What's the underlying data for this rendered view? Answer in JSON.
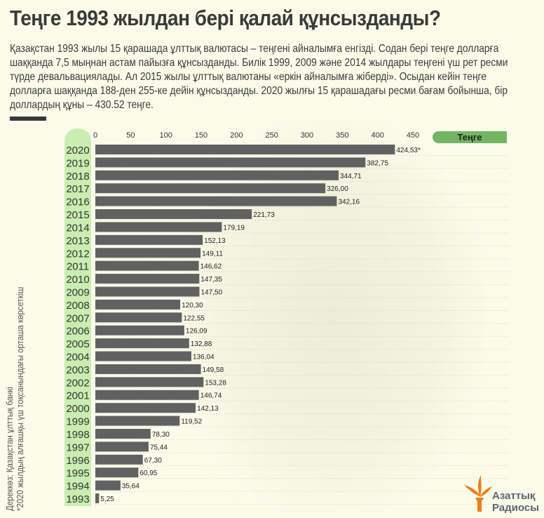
{
  "title": "Теңге 1993 жылдан бері қалай құнсызданды?",
  "intro": "Қазақстан 1993 жылы 15 қарашада ұлттық валютасы – теңгені айналымға енгізді. Содан бері теңге долларға шаққанда 7,5 мыңнан астам пайызға құнсызданды. Билік 1999, 2009 және 2014 жылдары теңгені үш рет ресми түрде девальвациялады. Ал 2015 жылы ұлттық валютаны «еркін айналымға жіберді». Осыдан кейін теңге долларға шаққанда 188-ден 255-ке дейін құнсызданды. 2020 жылғы 15 қарашадағы ресми бағам бойынша, бір доллардың құны – 430.52 теңге.",
  "source": "Дереккөз: Қазақстан ұлттық банкі",
  "footnote": "*2020 жылдың алғашқы үш тоқсанындағы орташа көрсеткіш",
  "logo": {
    "line1": "Азаттық",
    "line2": "Радиосы"
  },
  "colors": {
    "bar": "#616161",
    "year_band": "#c9eeb0",
    "unit_pill": "#72b565",
    "logo": "#f07d1a",
    "background": "#fbfbea"
  },
  "chart_data": {
    "type": "bar",
    "orientation": "horizontal",
    "unit_label": "Теңге",
    "xlim": [
      0,
      450
    ],
    "xticks": [
      0,
      50,
      100,
      150,
      200,
      250,
      300,
      350,
      400,
      450
    ],
    "categories": [
      "2020",
      "2019",
      "2018",
      "2017",
      "2016",
      "2015",
      "2014",
      "2013",
      "2012",
      "2011",
      "2010",
      "2009",
      "2008",
      "2007",
      "2006",
      "2005",
      "2004",
      "2003",
      "2002",
      "2001",
      "2000",
      "1999",
      "1998",
      "1997",
      "1996",
      "1995",
      "1994",
      "1993"
    ],
    "values": [
      424.53,
      382.75,
      344.71,
      326.0,
      342.16,
      221.73,
      179.19,
      152.13,
      149.11,
      146.62,
      147.35,
      147.5,
      120.3,
      122.55,
      126.09,
      132.88,
      136.04,
      149.58,
      153.28,
      146.74,
      142.13,
      119.52,
      78.3,
      75.44,
      67.3,
      60.95,
      35.64,
      5.25
    ],
    "labels": [
      "424,53*",
      "382,75",
      "344,71",
      "326,00",
      "342,16",
      "221,73",
      "179,19",
      "152,13",
      "149,11",
      "146,62",
      "147,35",
      "147,50",
      "120,30",
      "122,55",
      "126,09",
      "132,88",
      "136,04",
      "149,58",
      "153,28",
      "146,74",
      "142,13",
      "119,52",
      "78,30",
      "75,44",
      "67,30",
      "60,95",
      "35,64",
      "5,25"
    ],
    "grid": "horizontal dotted"
  }
}
